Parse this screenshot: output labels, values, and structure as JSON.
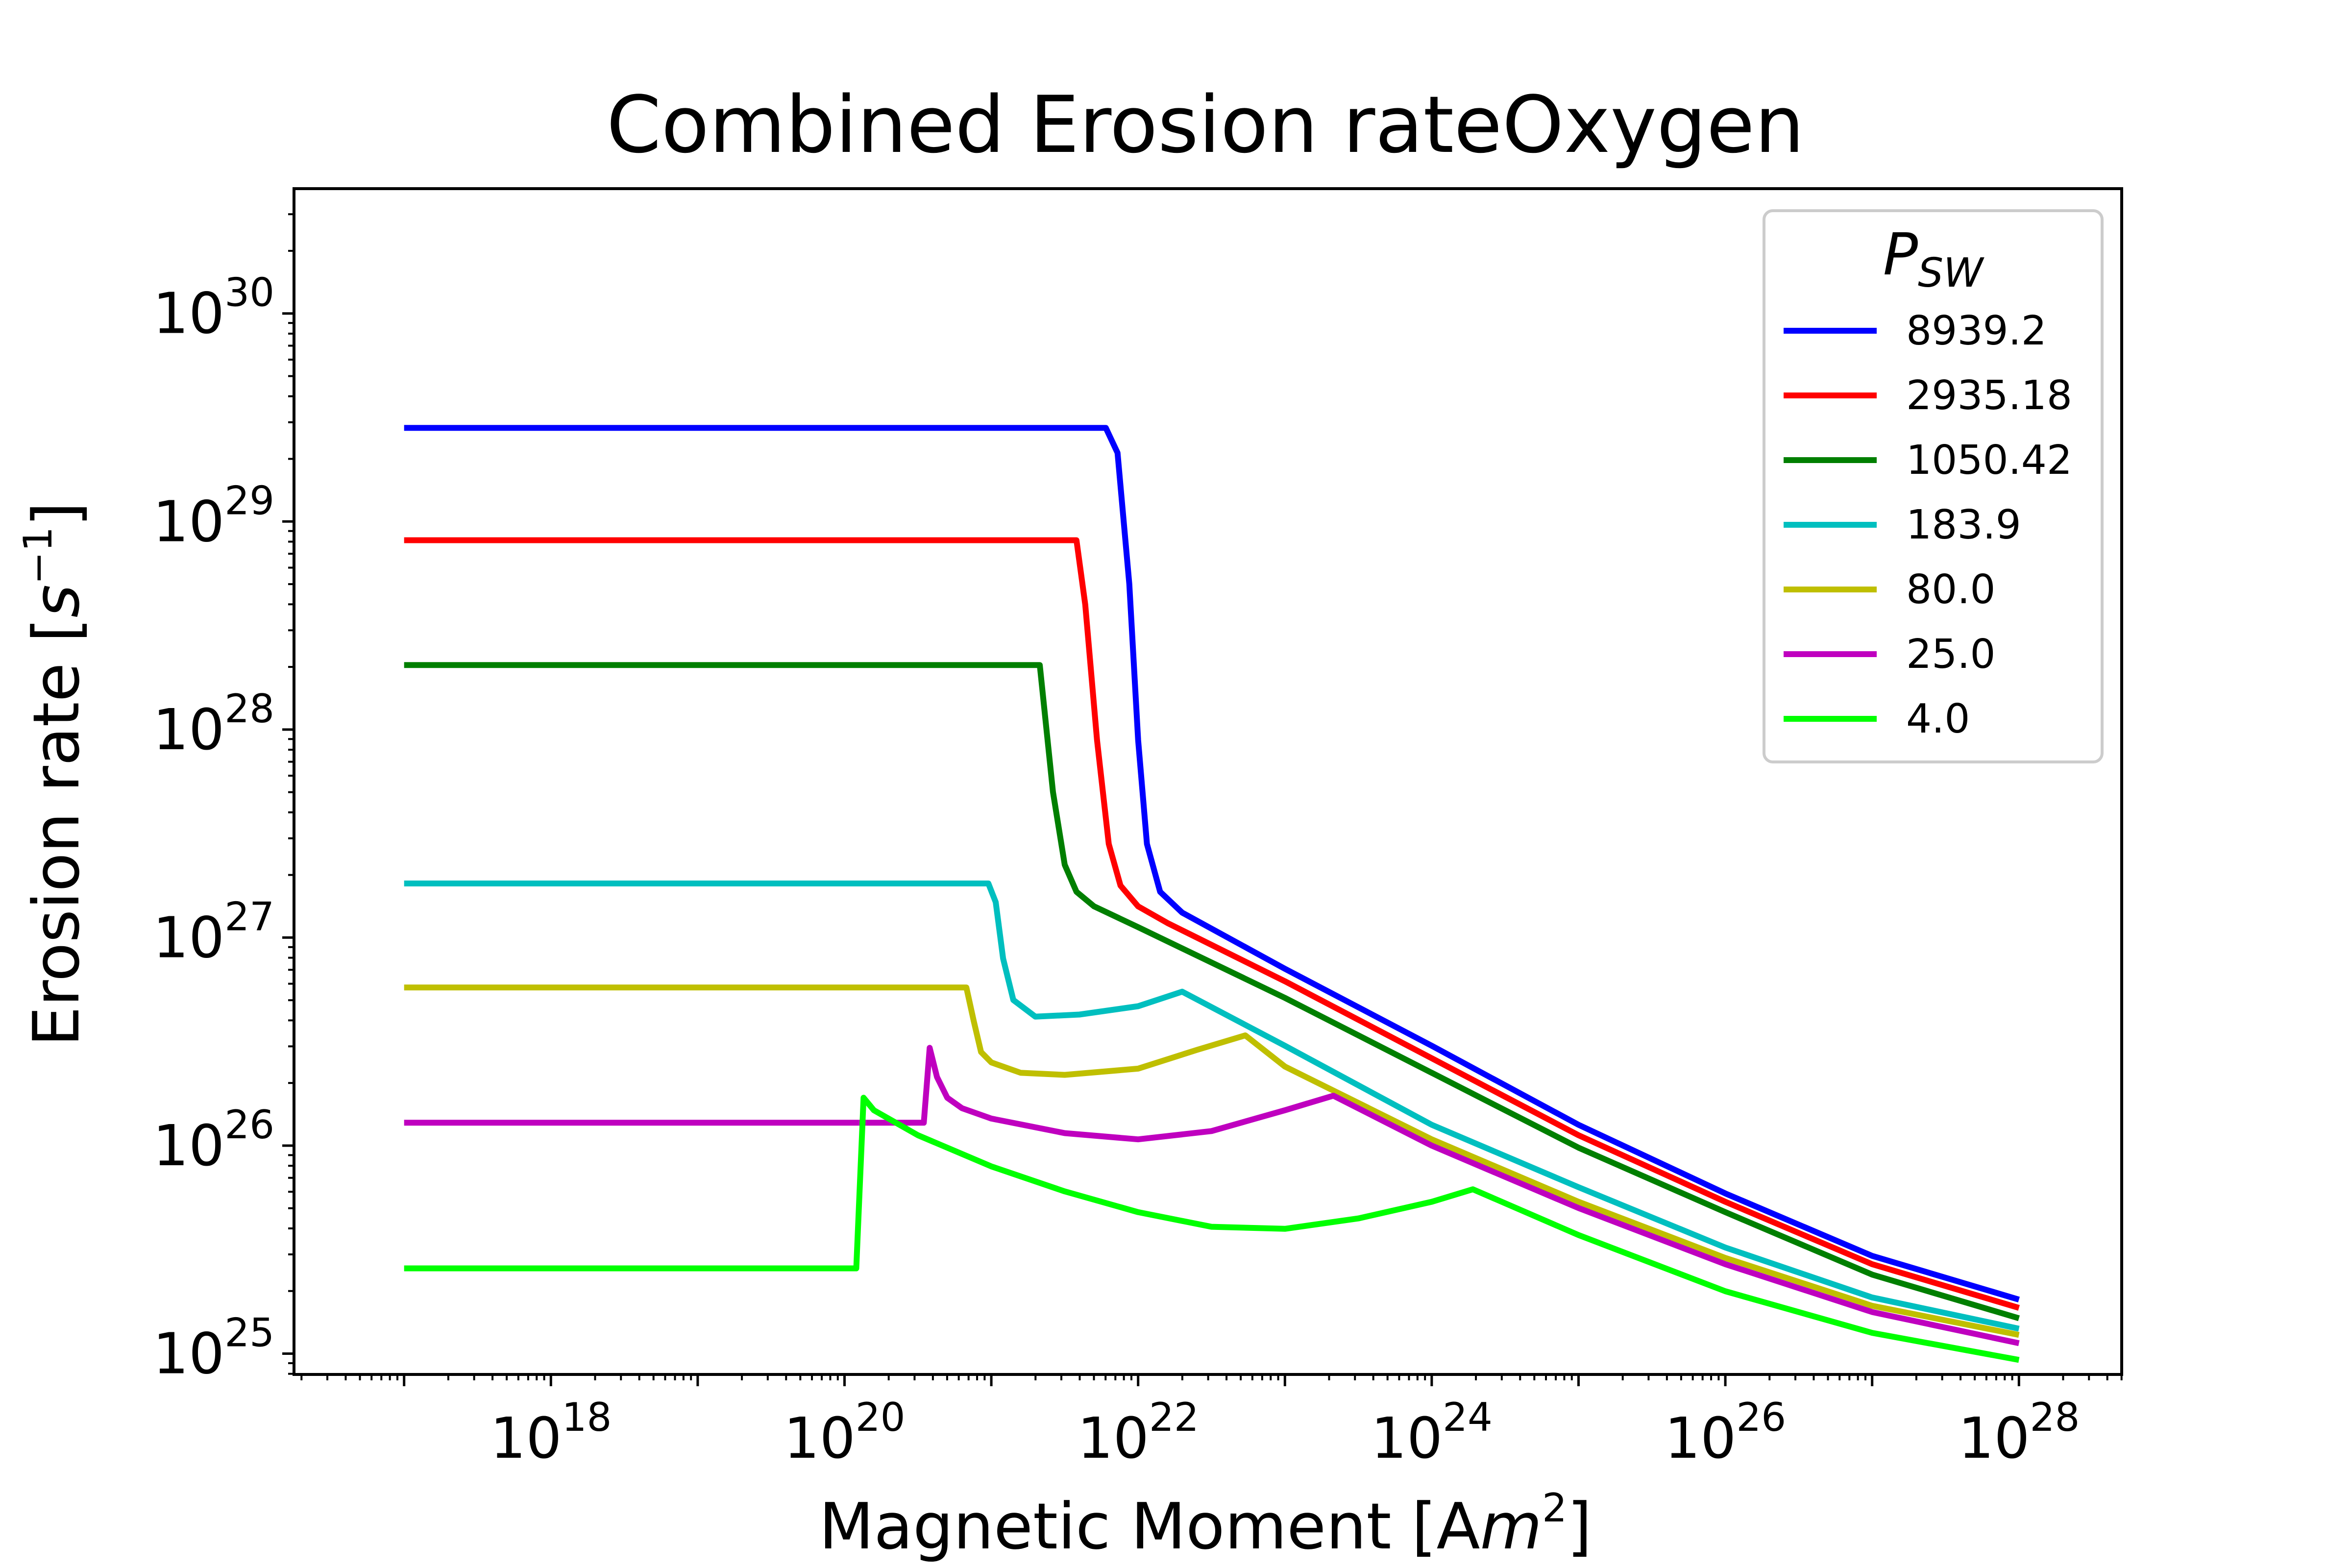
{
  "chart_data": {
    "type": "line",
    "title": "Combined Erosion rateOxygen",
    "xlabel": {
      "text": "Magnetic Moment [A",
      "unit_sym": "m",
      "unit_sup": "2",
      "close": "]"
    },
    "ylabel": {
      "text": "Erosion rate [",
      "unit_sym": "s",
      "unit_sup": "−1",
      "close": "]"
    },
    "xscale": "log",
    "yscale": "log",
    "xlim_exp": [
      16.25,
      28.7
    ],
    "ylim_exp": [
      24.9,
      30.6
    ],
    "xticks": [
      {
        "base": "10",
        "exp": "18",
        "value_exp": 18
      },
      {
        "base": "10",
        "exp": "20",
        "value_exp": 20
      },
      {
        "base": "10",
        "exp": "22",
        "value_exp": 22
      },
      {
        "base": "10",
        "exp": "24",
        "value_exp": 24
      },
      {
        "base": "10",
        "exp": "26",
        "value_exp": 26
      },
      {
        "base": "10",
        "exp": "28",
        "value_exp": 28
      }
    ],
    "yticks": [
      {
        "base": "10",
        "exp": "25",
        "value_exp": 25
      },
      {
        "base": "10",
        "exp": "26",
        "value_exp": 26
      },
      {
        "base": "10",
        "exp": "27",
        "value_exp": 27
      },
      {
        "base": "10",
        "exp": "28",
        "value_exp": 28
      },
      {
        "base": "10",
        "exp": "29",
        "value_exp": 29
      },
      {
        "base": "10",
        "exp": "30",
        "value_exp": 30
      }
    ],
    "grid": false,
    "legend": {
      "title_base": "P",
      "title_sub": "SW",
      "placement": "upper-right"
    },
    "series": [
      {
        "name": "8939.2",
        "color": "#0000ff",
        "points": [
          [
            17.0,
            29.45
          ],
          [
            21.78,
            29.45
          ],
          [
            21.86,
            29.33
          ],
          [
            21.94,
            28.7
          ],
          [
            22.0,
            27.95
          ],
          [
            22.06,
            27.45
          ],
          [
            22.15,
            27.22
          ],
          [
            22.3,
            27.12
          ],
          [
            23.0,
            26.85
          ],
          [
            24.0,
            26.48
          ],
          [
            25.0,
            26.1
          ],
          [
            26.0,
            25.77
          ],
          [
            27.0,
            25.47
          ],
          [
            28.0,
            25.26
          ]
        ]
      },
      {
        "name": "2935.18",
        "color": "#ff0000",
        "points": [
          [
            17.0,
            28.91
          ],
          [
            21.58,
            28.91
          ],
          [
            21.64,
            28.6
          ],
          [
            21.72,
            27.95
          ],
          [
            21.8,
            27.45
          ],
          [
            21.88,
            27.25
          ],
          [
            22.0,
            27.15
          ],
          [
            22.2,
            27.07
          ],
          [
            23.0,
            26.79
          ],
          [
            24.0,
            26.42
          ],
          [
            25.0,
            26.05
          ],
          [
            26.0,
            25.73
          ],
          [
            27.0,
            25.43
          ],
          [
            28.0,
            25.22
          ]
        ]
      },
      {
        "name": "1050.42",
        "color": "#007f00",
        "points": [
          [
            17.0,
            28.31
          ],
          [
            21.33,
            28.31
          ],
          [
            21.42,
            27.7
          ],
          [
            21.5,
            27.35
          ],
          [
            21.58,
            27.22
          ],
          [
            21.7,
            27.15
          ],
          [
            22.0,
            27.05
          ],
          [
            23.0,
            26.71
          ],
          [
            24.0,
            26.35
          ],
          [
            25.0,
            25.99
          ],
          [
            26.0,
            25.68
          ],
          [
            27.0,
            25.38
          ],
          [
            28.0,
            25.17
          ]
        ]
      },
      {
        "name": "183.9",
        "color": "#00bfbf",
        "points": [
          [
            17.0,
            27.26
          ],
          [
            20.98,
            27.26
          ],
          [
            21.03,
            27.17
          ],
          [
            21.08,
            26.9
          ],
          [
            21.15,
            26.7
          ],
          [
            21.3,
            26.62
          ],
          [
            21.6,
            26.63
          ],
          [
            22.0,
            26.67
          ],
          [
            22.3,
            26.74
          ],
          [
            23.0,
            26.48
          ],
          [
            24.0,
            26.1
          ],
          [
            25.0,
            25.8
          ],
          [
            26.0,
            25.51
          ],
          [
            27.0,
            25.27
          ],
          [
            28.0,
            25.12
          ]
        ]
      },
      {
        "name": "80.0",
        "color": "#bfbf00",
        "points": [
          [
            17.0,
            26.76
          ],
          [
            20.83,
            26.76
          ],
          [
            20.88,
            26.6
          ],
          [
            20.93,
            26.45
          ],
          [
            21.0,
            26.4
          ],
          [
            21.2,
            26.35
          ],
          [
            21.5,
            26.34
          ],
          [
            22.0,
            26.37
          ],
          [
            22.4,
            26.46
          ],
          [
            22.73,
            26.53
          ],
          [
            23.0,
            26.38
          ],
          [
            24.0,
            26.03
          ],
          [
            25.0,
            25.73
          ],
          [
            26.0,
            25.46
          ],
          [
            27.0,
            25.23
          ],
          [
            28.0,
            25.09
          ]
        ]
      },
      {
        "name": "25.0",
        "color": "#bf00bf",
        "points": [
          [
            17.0,
            26.11
          ],
          [
            20.54,
            26.11
          ],
          [
            20.58,
            26.47
          ],
          [
            20.63,
            26.33
          ],
          [
            20.7,
            26.23
          ],
          [
            20.8,
            26.18
          ],
          [
            21.0,
            26.13
          ],
          [
            21.5,
            26.06
          ],
          [
            22.0,
            26.03
          ],
          [
            22.5,
            26.07
          ],
          [
            23.0,
            26.17
          ],
          [
            23.33,
            26.24
          ],
          [
            24.0,
            26.0
          ],
          [
            25.0,
            25.7
          ],
          [
            26.0,
            25.43
          ],
          [
            27.0,
            25.2
          ],
          [
            28.0,
            25.05
          ]
        ]
      },
      {
        "name": "4.0",
        "color": "#00ff00",
        "points": [
          [
            17.0,
            25.41
          ],
          [
            20.08,
            25.41
          ],
          [
            20.13,
            26.23
          ],
          [
            20.2,
            26.17
          ],
          [
            20.5,
            26.05
          ],
          [
            21.0,
            25.9
          ],
          [
            21.5,
            25.78
          ],
          [
            22.0,
            25.68
          ],
          [
            22.5,
            25.61
          ],
          [
            23.0,
            25.6
          ],
          [
            23.5,
            25.65
          ],
          [
            24.0,
            25.73
          ],
          [
            24.28,
            25.79
          ],
          [
            25.0,
            25.57
          ],
          [
            26.0,
            25.3
          ],
          [
            27.0,
            25.1
          ],
          [
            28.0,
            24.97
          ]
        ]
      }
    ]
  }
}
